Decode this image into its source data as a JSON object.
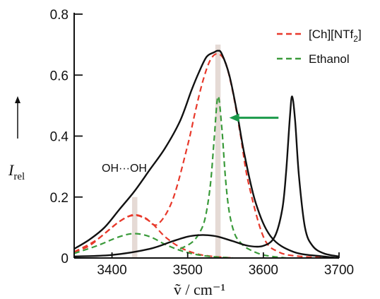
{
  "chart_data": {
    "type": "line",
    "xlabel": "ṽ / cm⁻¹",
    "ylabel": "I_rel",
    "xlim": [
      3350,
      3700
    ],
    "ylim": [
      0,
      0.8
    ],
    "x_ticks": [
      3400,
      3500,
      3600,
      3700
    ],
    "x_tick_labels": [
      "3400",
      "3500",
      "3600",
      "3700"
    ],
    "y_ticks": [
      0,
      0.2,
      0.4,
      0.6,
      0.8
    ],
    "y_tick_labels": [
      "0",
      "0.2",
      "0.4",
      "0.6",
      "0.8"
    ],
    "legend": [
      {
        "label": "[Ch][NTf2]",
        "color": "#e8392b",
        "style": "dashed"
      },
      {
        "label": "Ethanol",
        "color": "#3a9a3a",
        "style": "dashed"
      }
    ],
    "legend_position": "top-right",
    "grid": false,
    "annotations": [
      {
        "text": "OH···OH",
        "x": 3430,
        "y": 0.25
      },
      {
        "type": "arrow",
        "from_x": 3620,
        "to_x": 3555,
        "y": 0.46,
        "color": "#1a9a4a"
      }
    ],
    "shaded_bands": [
      {
        "center": 3430,
        "width": 7,
        "ymax": 0.2,
        "color": "#e5dad5"
      },
      {
        "center": 3540,
        "width": 7,
        "ymax": 0.7,
        "color": "#e5dad5"
      }
    ],
    "series": [
      {
        "name": "[Ch][NTf2]",
        "color": "#e8392b",
        "style": "dashed",
        "x": [
          3350,
          3370,
          3390,
          3410,
          3425,
          3435,
          3445,
          3460,
          3480,
          3500,
          3510,
          3520,
          3530,
          3540,
          3550,
          3560,
          3570,
          3580,
          3600,
          3620,
          3650,
          3700
        ],
        "y": [
          0.02,
          0.04,
          0.08,
          0.12,
          0.14,
          0.14,
          0.13,
          0.11,
          0.19,
          0.37,
          0.48,
          0.58,
          0.65,
          0.67,
          0.64,
          0.54,
          0.4,
          0.25,
          0.07,
          0.02,
          0.005,
          0.0
        ]
      },
      {
        "name": "",
        "color": "#e8392b",
        "style": "dashed",
        "x": [
          3350,
          3380,
          3410,
          3430,
          3450,
          3470,
          3490,
          3510,
          3530,
          3560
        ],
        "y": [
          0.02,
          0.06,
          0.12,
          0.14,
          0.12,
          0.07,
          0.035,
          0.015,
          0.006,
          0.0
        ]
      },
      {
        "name": "Ethanol",
        "color": "#3a9a3a",
        "style": "dashed",
        "x": [
          3350,
          3380,
          3410,
          3430,
          3450,
          3470,
          3490,
          3510,
          3530,
          3560
        ],
        "y": [
          0.015,
          0.04,
          0.07,
          0.08,
          0.07,
          0.045,
          0.025,
          0.012,
          0.005,
          0.0
        ]
      },
      {
        "name": "",
        "color": "#3a9a3a",
        "style": "dashed",
        "x": [
          3490,
          3505,
          3515,
          3523,
          3530,
          3535,
          3540,
          3545,
          3550,
          3555,
          3562,
          3570,
          3580,
          3600,
          3630
        ],
        "y": [
          0.03,
          0.05,
          0.08,
          0.13,
          0.24,
          0.39,
          0.53,
          0.43,
          0.26,
          0.15,
          0.08,
          0.05,
          0.03,
          0.01,
          0.0
        ]
      },
      {
        "name": "",
        "color": "#111111",
        "style": "solid",
        "x": [
          3350,
          3370,
          3390,
          3410,
          3430,
          3450,
          3470,
          3490,
          3505,
          3515,
          3525,
          3535,
          3540,
          3545,
          3555,
          3565,
          3575,
          3590,
          3610,
          3640,
          3680,
          3700
        ],
        "y": [
          0.03,
          0.06,
          0.1,
          0.16,
          0.22,
          0.29,
          0.36,
          0.45,
          0.55,
          0.61,
          0.66,
          0.675,
          0.68,
          0.67,
          0.6,
          0.48,
          0.34,
          0.18,
          0.07,
          0.02,
          0.005,
          0.0
        ]
      },
      {
        "name": "",
        "color": "#111111",
        "style": "solid",
        "x": [
          3350,
          3400,
          3450,
          3480,
          3500,
          3515,
          3525,
          3540,
          3560,
          3580,
          3600,
          3615,
          3625,
          3630,
          3635,
          3638,
          3642,
          3647,
          3655,
          3665,
          3680,
          3700
        ],
        "y": [
          0.005,
          0.01,
          0.03,
          0.055,
          0.07,
          0.075,
          0.075,
          0.07,
          0.055,
          0.04,
          0.04,
          0.07,
          0.16,
          0.28,
          0.46,
          0.53,
          0.45,
          0.27,
          0.1,
          0.04,
          0.015,
          0.005
        ]
      }
    ]
  }
}
